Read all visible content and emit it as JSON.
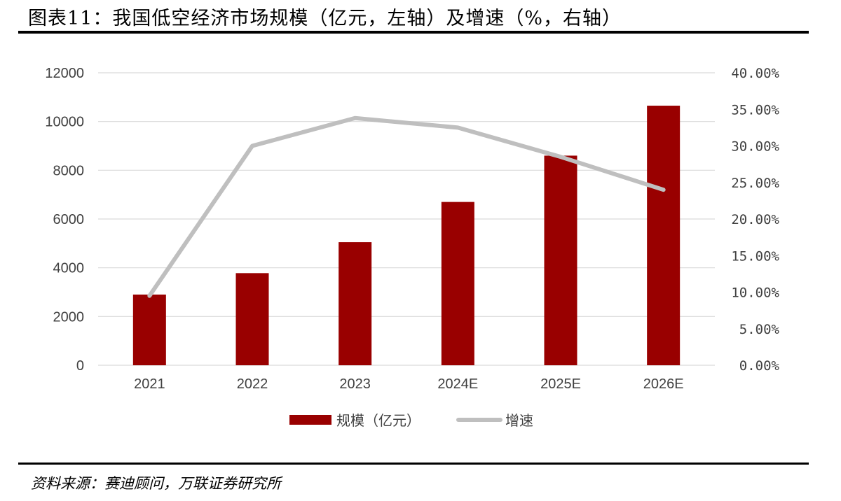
{
  "header": {
    "title": "图表11：我国低空经济市场规模（亿元，左轴）及增速（%，右轴）"
  },
  "footer": {
    "source": "资料来源：赛迪顾问，万联证券研究所"
  },
  "chart_data": {
    "type": "bar",
    "title": "我国低空经济市场规模（亿元，左轴）及增速（%，右轴）",
    "categories": [
      "2021",
      "2022",
      "2023",
      "2024E",
      "2025E",
      "2026E"
    ],
    "series": [
      {
        "name": "规模（亿元）",
        "kind": "bar",
        "axis": "left",
        "color": "#990000",
        "values": [
          2900,
          3780,
          5050,
          6700,
          8600,
          10650
        ]
      },
      {
        "name": "增速",
        "kind": "line",
        "axis": "right",
        "color": "#bfbfbf",
        "values": [
          0.095,
          0.3,
          0.338,
          0.325,
          0.285,
          0.24
        ]
      }
    ],
    "y_left": {
      "min": 0,
      "max": 12000,
      "ticks": [
        "0",
        "2000",
        "4000",
        "6000",
        "8000",
        "10000",
        "12000"
      ]
    },
    "y_right": {
      "min": 0,
      "max": 0.4,
      "ticks": [
        "0.00%",
        "5.00%",
        "10.00%",
        "15.00%",
        "20.00%",
        "25.00%",
        "30.00%",
        "35.00%",
        "40.00%"
      ]
    },
    "legend": {
      "position": "bottom",
      "entries": [
        "规模（亿元）",
        "增速"
      ]
    },
    "grid": true,
    "gridColor": "#d9d9d9"
  }
}
